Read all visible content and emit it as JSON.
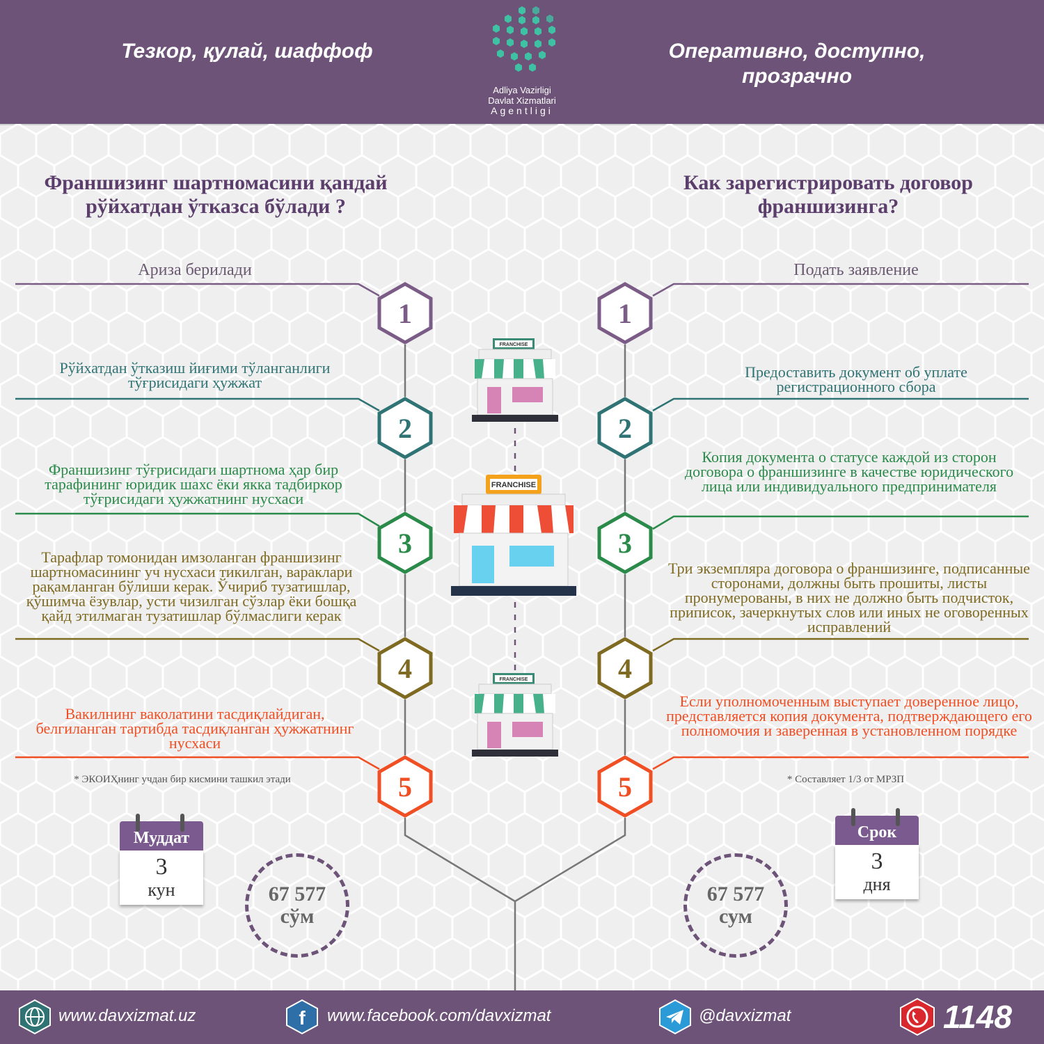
{
  "header": {
    "slogan_uz": "Тезкор, қулай, шаффоф",
    "slogan_ru": "Оперативно, доступно, прозрачно",
    "logo_line1": "Adliya Vazirligi",
    "logo_line2": "Davlat Xizmatlari",
    "logo_line3": "Agentligi"
  },
  "left": {
    "title": "Франшизинг шартномасини қандай рўйхатдан ўтказса бўлади ?",
    "steps": [
      {
        "num": "1",
        "text": "Ариза берилади"
      },
      {
        "num": "2",
        "text": "Рўйхатдан ўтказиш йиғими тўланганлиги тўғрисидаги ҳужжат"
      },
      {
        "num": "3",
        "text": "Франшизинг тўғрисидаги шартнома ҳар бир тарафининг юридик шахс ёки якка тадбиркор тўғрисидаги ҳужжатнинг нусхаси"
      },
      {
        "num": "4",
        "text": "Тарафлар томонидан имзоланган франшизинг шартномасининг уч нусхаси тикилган, вараклари рақамланган бўлиши керак. Ўчириб тузатишлар,  қўшимча ёзувлар, усти чизилган сўзлар ёки бошқа қайд этилмаган тузатишлар бўлмаслиги керак"
      },
      {
        "num": "5",
        "text": "Вакилнинг ваколатини тасдиқлайдиган, белгиланган тартибда тасдиқланган ҳужжатнинг нусхаси"
      }
    ],
    "note": "* ЭКОИҲнинг учдан бир кисмини ташкил этади",
    "calendar": {
      "title": "Муддат",
      "value": "3",
      "unit": "кун"
    },
    "price": {
      "value": "67 577",
      "unit": "сўм"
    }
  },
  "right": {
    "title": "Как зарегистрировать договор франшизинга?",
    "steps": [
      {
        "num": "1",
        "text": "Подать заявление"
      },
      {
        "num": "2",
        "text": "Предоставить документ об уплате регистрационного сбора"
      },
      {
        "num": "3",
        "text": "Копия документа о статусе каждой из сторон договора о франшизинге в качестве юридического лица или индивидуального предпринимателя"
      },
      {
        "num": "4",
        "text": "Три экземпляра договора о франшизинге, подписанные сторонами, должны быть прошиты, листы пронумерованы, в них не должно быть подчисток, приписок, зачеркнутых слов или иных не оговоренных исправлений"
      },
      {
        "num": "5",
        "text": "Если уполномоченным выступает доверенное лицо, представляется копия документа, подтверждающего его полномочия и заверенная в установленном порядке"
      }
    ],
    "note": "* Составляет  1/3 от МРЗП",
    "calendar": {
      "title": "Срок",
      "value": "3",
      "unit": "дня"
    },
    "price": {
      "value": "67 577",
      "unit": "сум"
    }
  },
  "store_sign": "FRANCHISE",
  "step_colors": [
    "#7a5c86",
    "#2f7374",
    "#2a8a4a",
    "#7f6a22",
    "#f04e23"
  ],
  "footer": {
    "website": "www.davxizmat.uz",
    "facebook": "www.facebook.com/davxizmat",
    "telegram": "@davxizmat",
    "phone": "1148"
  }
}
